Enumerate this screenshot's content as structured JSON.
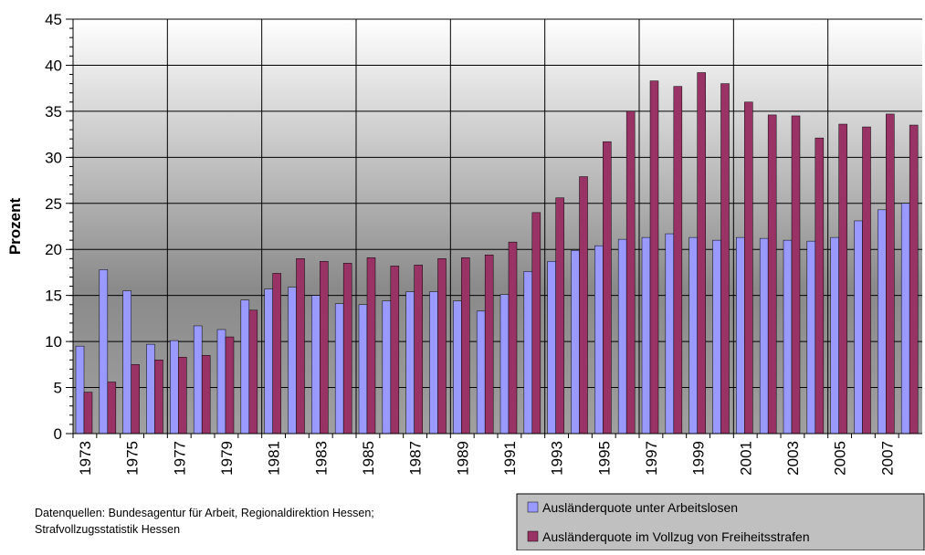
{
  "chart_data": {
    "type": "bar",
    "y_label": "Prozent",
    "note": [
      "Datenquellen: Bundesagentur für Arbeit, Regionaldirektion Hessen;",
      "Strafvollzugsstatistik Hessen"
    ],
    "categories": [
      "1973",
      null,
      "1975",
      null,
      "1977",
      null,
      "1979",
      null,
      "1981",
      null,
      "1983",
      null,
      "1985",
      null,
      "1987",
      null,
      "1989",
      null,
      "1991",
      null,
      "1993",
      null,
      "1995",
      null,
      "1997",
      null,
      "1999",
      null,
      "2001",
      null,
      "2003",
      null,
      "2005",
      null,
      "2007",
      null
    ],
    "series": [
      {
        "name": "Ausländerquote unter Arbeitslosen",
        "color": "#9999ff",
        "values": [
          9.5,
          17.8,
          15.5,
          9.7,
          10.1,
          11.7,
          11.3,
          14.5,
          15.7,
          15.9,
          15.0,
          14.1,
          14.0,
          14.4,
          15.4,
          15.4,
          14.4,
          13.3,
          15.1,
          17.6,
          18.7,
          19.9,
          20.4,
          21.1,
          21.3,
          21.7,
          21.3,
          21.0,
          21.3,
          21.2,
          21.0,
          20.9,
          21.3,
          23.1,
          24.3,
          25.0
        ]
      },
      {
        "name": "Ausländerquote im Vollzug von Freiheitsstrafen",
        "color": "#993366",
        "values": [
          4.5,
          5.6,
          7.5,
          8.0,
          8.3,
          8.5,
          10.5,
          13.4,
          17.4,
          19.0,
          18.7,
          18.5,
          19.1,
          18.2,
          18.3,
          19.0,
          19.1,
          19.4,
          20.8,
          24.0,
          25.6,
          27.9,
          31.7,
          35.0,
          38.3,
          37.7,
          39.2,
          38.0,
          36.0,
          34.6,
          34.5,
          32.1,
          33.6,
          33.3,
          34.7,
          33.5
        ]
      }
    ],
    "ylim": [
      0,
      45
    ],
    "yticks": [
      0,
      5,
      10,
      15,
      20,
      25,
      30,
      35,
      40,
      45
    ],
    "grid": true
  }
}
